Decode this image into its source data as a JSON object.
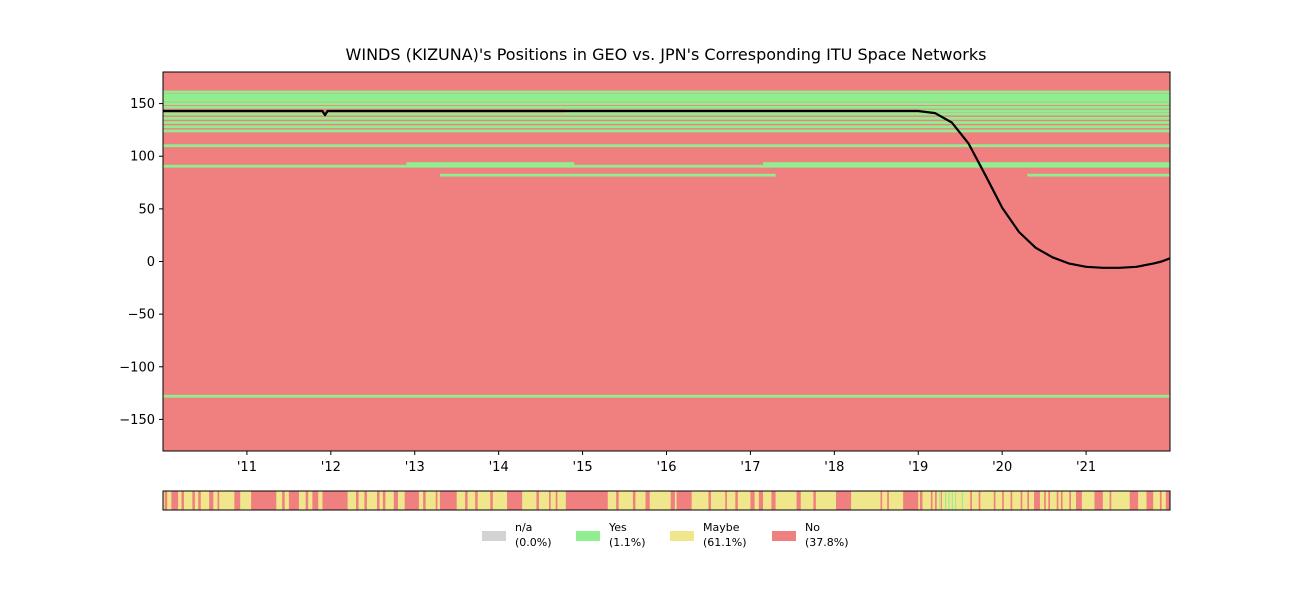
{
  "chart_data": {
    "type": "heatmap",
    "title": "WINDS (KIZUNA)'s Positions in GEO vs. JPN's Corresponding ITU Space Networks",
    "xlabel": "",
    "ylabel": "",
    "xlim": [
      2010.0,
      2022.0
    ],
    "ylim": [
      -180,
      180
    ],
    "x_ticks": [
      {
        "value": 2011,
        "label": "'11"
      },
      {
        "value": 2012,
        "label": "'12"
      },
      {
        "value": 2013,
        "label": "'13"
      },
      {
        "value": 2014,
        "label": "'14"
      },
      {
        "value": 2015,
        "label": "'15"
      },
      {
        "value": 2016,
        "label": "'16"
      },
      {
        "value": 2017,
        "label": "'17"
      },
      {
        "value": 2018,
        "label": "'18"
      },
      {
        "value": 2019,
        "label": "'19"
      },
      {
        "value": 2020,
        "label": "'20"
      },
      {
        "value": 2021,
        "label": "'21"
      }
    ],
    "y_ticks": [
      {
        "value": 150,
        "label": "150"
      },
      {
        "value": 100,
        "label": "100"
      },
      {
        "value": 50,
        "label": "50"
      },
      {
        "value": 0,
        "label": "0"
      },
      {
        "value": -50,
        "label": "−50"
      },
      {
        "value": -100,
        "label": "−100"
      },
      {
        "value": -150,
        "label": "−150"
      }
    ],
    "grid": false,
    "background_status": "No",
    "network_bands": [
      {
        "lon": 161,
        "start": 2010.0,
        "end": 2022.0
      },
      {
        "lon": 158,
        "start": 2010.0,
        "end": 2022.0
      },
      {
        "lon": 155.5,
        "start": 2010.0,
        "end": 2022.0
      },
      {
        "lon": 153,
        "start": 2010.0,
        "end": 2022.0
      },
      {
        "lon": 150,
        "start": 2010.0,
        "end": 2022.0
      },
      {
        "lon": 146.5,
        "start": 2010.0,
        "end": 2022.0
      },
      {
        "lon": 143,
        "start": 2014.8,
        "end": 2022.0
      },
      {
        "lon": 140,
        "start": 2010.0,
        "end": 2022.0
      },
      {
        "lon": 136,
        "start": 2010.0,
        "end": 2022.0
      },
      {
        "lon": 132,
        "start": 2010.0,
        "end": 2022.0
      },
      {
        "lon": 128,
        "start": 2010.0,
        "end": 2022.0
      },
      {
        "lon": 124,
        "start": 2010.0,
        "end": 2022.0
      },
      {
        "lon": 110,
        "start": 2010.0,
        "end": 2022.0
      },
      {
        "lon": 93,
        "start": 2012.9,
        "end": 2014.9
      },
      {
        "lon": 93,
        "start": 2017.15,
        "end": 2022.0
      },
      {
        "lon": 90.5,
        "start": 2010.0,
        "end": 2022.0
      },
      {
        "lon": 82,
        "start": 2013.3,
        "end": 2017.3
      },
      {
        "lon": 82,
        "start": 2020.3,
        "end": 2022.0
      },
      {
        "lon": -128,
        "start": 2010.0,
        "end": 2022.0
      }
    ],
    "series": [
      {
        "type": "line",
        "x": [
          2010.0,
          2011.0,
          2011.9,
          2011.93,
          2011.96,
          2012.0,
          2013.0,
          2014.0,
          2015.0,
          2016.0,
          2017.0,
          2018.0,
          2019.0,
          2019.2,
          2019.4,
          2019.6,
          2019.8,
          2020.0,
          2020.2,
          2020.4,
          2020.6,
          2020.8,
          2021.0,
          2021.2,
          2021.4,
          2021.6,
          2021.8,
          2021.9,
          2022.0
        ],
        "y": [
          143,
          143,
          143,
          139,
          143,
          143,
          143,
          143,
          143,
          143,
          143,
          143,
          143,
          141,
          132,
          112,
          82,
          51,
          28,
          13,
          4,
          -2,
          -5,
          -6,
          -6,
          -5,
          -2,
          0,
          3
        ]
      }
    ],
    "strip": {
      "status_colors": {
        "n/a": "#d3d3d3",
        "Yes": "#90ee90",
        "Maybe": "#f0e68c",
        "No": "#f08080"
      },
      "no_segments": [
        [
          2010.02,
          2010.05
        ],
        [
          2010.1,
          2010.18
        ],
        [
          2010.22,
          2010.25
        ],
        [
          2010.35,
          2010.38
        ],
        [
          2010.42,
          2010.45
        ],
        [
          2010.55,
          2010.6
        ],
        [
          2010.65,
          2010.67
        ],
        [
          2010.85,
          2010.92
        ],
        [
          2011.05,
          2011.35
        ],
        [
          2011.42,
          2011.45
        ],
        [
          2011.5,
          2011.62
        ],
        [
          2011.7,
          2011.73
        ],
        [
          2011.78,
          2011.85
        ],
        [
          2011.9,
          2012.2
        ],
        [
          2012.3,
          2012.33
        ],
        [
          2012.4,
          2012.43
        ],
        [
          2012.55,
          2012.58
        ],
        [
          2012.62,
          2012.65
        ],
        [
          2012.75,
          2012.8
        ],
        [
          2012.88,
          2013.05
        ],
        [
          2013.1,
          2013.13
        ],
        [
          2013.25,
          2013.27
        ],
        [
          2013.3,
          2013.5
        ],
        [
          2013.6,
          2013.63
        ],
        [
          2013.72,
          2013.75
        ],
        [
          2013.9,
          2013.93
        ],
        [
          2014.1,
          2014.28
        ],
        [
          2014.45,
          2014.48
        ],
        [
          2014.6,
          2014.62
        ],
        [
          2014.68,
          2014.7
        ],
        [
          2014.8,
          2015.3
        ],
        [
          2015.4,
          2015.43
        ],
        [
          2015.6,
          2015.63
        ],
        [
          2015.75,
          2015.8
        ],
        [
          2016.05,
          2016.1
        ],
        [
          2016.12,
          2016.3
        ],
        [
          2016.5,
          2016.53
        ],
        [
          2016.7,
          2016.72
        ],
        [
          2016.82,
          2016.85
        ],
        [
          2017.0,
          2017.05
        ],
        [
          2017.1,
          2017.15
        ],
        [
          2017.25,
          2017.3
        ],
        [
          2017.55,
          2017.6
        ],
        [
          2017.75,
          2017.78
        ],
        [
          2018.02,
          2018.2
        ],
        [
          2018.55,
          2018.57
        ],
        [
          2018.63,
          2018.65
        ],
        [
          2018.82,
          2019.0
        ],
        [
          2019.02,
          2019.05
        ],
        [
          2019.15,
          2019.17
        ],
        [
          2019.2,
          2019.22
        ],
        [
          2019.27,
          2019.28
        ],
        [
          2019.62,
          2019.64
        ],
        [
          2019.72,
          2019.74
        ],
        [
          2019.9,
          2019.92
        ],
        [
          2020.0,
          2020.02
        ],
        [
          2020.1,
          2020.12
        ],
        [
          2020.22,
          2020.24
        ],
        [
          2020.3,
          2020.32
        ],
        [
          2020.38,
          2020.45
        ],
        [
          2020.5,
          2020.52
        ],
        [
          2020.55,
          2020.57
        ],
        [
          2020.65,
          2020.67
        ],
        [
          2020.7,
          2020.72
        ],
        [
          2020.8,
          2020.82
        ],
        [
          2020.88,
          2020.95
        ],
        [
          2021.1,
          2021.2
        ],
        [
          2021.28,
          2021.3
        ],
        [
          2021.52,
          2021.62
        ],
        [
          2021.72,
          2021.8
        ],
        [
          2021.88,
          2021.9
        ],
        [
          2021.95,
          2022.0
        ]
      ],
      "yes_segments": [
        [
          2019.25,
          2019.26
        ],
        [
          2019.32,
          2019.33
        ],
        [
          2019.36,
          2019.37
        ],
        [
          2019.4,
          2019.41
        ],
        [
          2019.44,
          2019.45
        ],
        [
          2019.52,
          2019.53
        ]
      ]
    },
    "legend": {
      "placement": "bottom-center",
      "entries": [
        {
          "name": "n/a",
          "pct": "(0.0%)",
          "color": "#d3d3d3"
        },
        {
          "name": "Yes",
          "pct": "(1.1%)",
          "color": "#90ee90"
        },
        {
          "name": "Maybe",
          "pct": "(61.1%)",
          "color": "#f0e68c"
        },
        {
          "name": "No",
          "pct": "(37.8%)",
          "color": "#f08080"
        }
      ]
    }
  }
}
